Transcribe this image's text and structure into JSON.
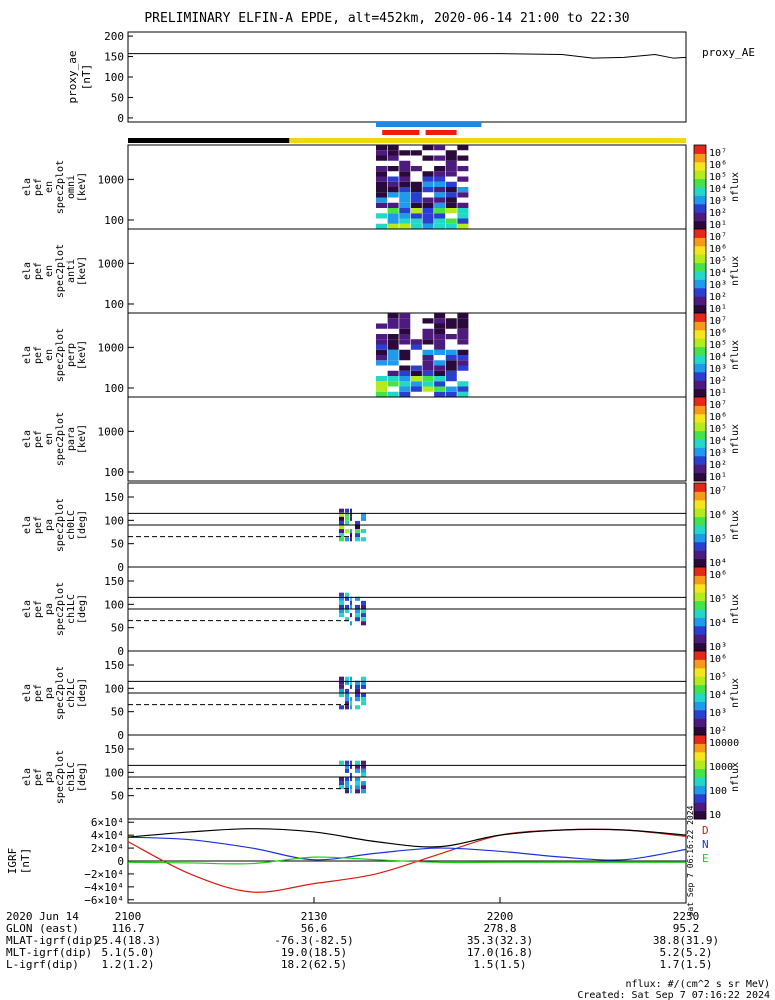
{
  "title": "PRELIMINARY ELFIN-A EPDE, alt=452km, 2020-06-14 21:00 to 22:30",
  "colors": {
    "bar_yellow": "#f2d60f",
    "bar_black": "#000000",
    "bar_blue": "#1e88e5",
    "bar_red": "#ee1c0e",
    "grf_D": "#e01a0c",
    "grf_N": "#1c32d8",
    "grf_E": "#1fcc14",
    "grf_total": "#000000",
    "colormap": [
      "#2a0a3a",
      "#4d1a7e",
      "#2b3fcf",
      "#1e9bea",
      "#22d8c8",
      "#45e34a",
      "#b5ea1c",
      "#f4e51c",
      "#f69a1a",
      "#e4281a"
    ]
  },
  "status_bars": {
    "black_segment": [
      "21:00",
      "21:26"
    ],
    "blue_segment": [
      "21:40",
      "21:57"
    ],
    "red_segments": [
      [
        "21:41",
        "21:47"
      ],
      [
        "21:48",
        "21:53"
      ]
    ]
  },
  "panels": {
    "ae": {
      "label_lines": [
        "proxy_ae",
        "[nT]"
      ],
      "right_label": "proxy_AE"
    },
    "en": [
      {
        "label_lines": [
          "ela",
          "pef",
          "en",
          "spec2plot",
          "omni",
          "[keV]"
        ],
        "yticks": [
          "1000",
          "100"
        ]
      },
      {
        "label_lines": [
          "ela",
          "pef",
          "en",
          "spec2plot",
          "anti",
          "[keV]"
        ],
        "yticks": [
          "1000",
          "100"
        ]
      },
      {
        "label_lines": [
          "ela",
          "pef",
          "en",
          "spec2plot",
          "perp",
          "[keV]"
        ],
        "yticks": [
          "1000",
          "100"
        ]
      },
      {
        "label_lines": [
          "ela",
          "pef",
          "en",
          "spec2plot",
          "para",
          "[keV]"
        ],
        "yticks": [
          "1000",
          "100"
        ]
      }
    ],
    "pa": [
      {
        "label_lines": [
          "ela",
          "pef",
          "pa",
          "spec2plot",
          "ch0LC",
          "[deg]"
        ],
        "yticks": [
          "150",
          "100",
          "50",
          "0"
        ]
      },
      {
        "label_lines": [
          "ela",
          "pef",
          "pa",
          "spec2plot",
          "ch1LC",
          "[deg]"
        ],
        "yticks": [
          "150",
          "100",
          "50",
          "0"
        ]
      },
      {
        "label_lines": [
          "ela",
          "pef",
          "pa",
          "spec2plot",
          "ch2LC",
          "[deg]"
        ],
        "yticks": [
          "150",
          "100",
          "50",
          "0"
        ]
      },
      {
        "label_lines": [
          "ela",
          "pef",
          "pa",
          "spec2plot",
          "ch3LC",
          "[deg]"
        ],
        "yticks": [
          "150",
          "100",
          "50"
        ]
      }
    ],
    "colorbars": [
      {
        "unit": "nflux",
        "ticks": [
          "10⁷",
          "10⁶",
          "10⁵",
          "10⁴",
          "10³",
          "10²",
          "10¹"
        ]
      },
      {
        "unit": "nflux",
        "ticks": [
          "10⁷",
          "10⁶",
          "10⁵",
          "10⁴",
          "10³",
          "10²",
          "10¹"
        ]
      },
      {
        "unit": "nflux",
        "ticks": [
          "10⁷",
          "10⁶",
          "10⁵",
          "10⁴",
          "10³",
          "10²",
          "10¹"
        ]
      },
      {
        "unit": "nflux",
        "ticks": [
          "10⁷",
          "10⁶",
          "10⁵",
          "10⁴",
          "10³",
          "10²",
          "10¹"
        ]
      },
      {
        "unit": "nflux",
        "ticks": [
          "10⁷",
          "10⁶",
          "10⁵",
          "10⁴"
        ]
      },
      {
        "unit": "nflux",
        "ticks": [
          "10⁶",
          "10⁵",
          "10⁴",
          "10³"
        ]
      },
      {
        "unit": "nflux",
        "ticks": [
          "10⁶",
          "10⁵",
          "10⁴",
          "10³",
          "10²"
        ]
      },
      {
        "unit": "nflux",
        "ticks": [
          "10000",
          "1000",
          "100",
          "10"
        ]
      }
    ],
    "grf": {
      "label_lines": [
        "IGRF",
        "[nT]"
      ],
      "yticks": [
        "6×10⁴",
        "4×10⁴",
        "2×10⁴",
        "0",
        "−2×10⁴",
        "−4×10⁴",
        "−6×10⁴"
      ],
      "legend": [
        "D",
        "N",
        "E"
      ],
      "side_text": "Sat Sep 7 06:16:22 2024"
    }
  },
  "chart_data": [
    {
      "type": "line",
      "name": "proxy_AE",
      "ylabel": "proxy_ae [nT]",
      "ylim": [
        -10,
        210
      ],
      "yticks": [
        0,
        50,
        100,
        150,
        200
      ],
      "x_minutes": [
        0,
        40,
        60,
        70,
        75,
        80,
        85,
        88,
        90
      ],
      "y": [
        157,
        157,
        157,
        155,
        146,
        148,
        155,
        146,
        148
      ]
    },
    {
      "type": "heatmap",
      "name": "energy spectrograms",
      "ylabel": "[keV]",
      "y_scale": "log",
      "ytick_values": [
        1000,
        100
      ],
      "active_interval": [
        "21:40",
        "21:55"
      ],
      "colorbar": "nflux"
    },
    {
      "type": "heatmap",
      "name": "pitch-angle spectrograms",
      "ylabel": "[deg]",
      "ylim": [
        0,
        180
      ],
      "yticks": [
        0,
        50,
        100,
        150
      ],
      "reference_lines": {
        "solid": [
          90,
          115
        ],
        "dashed": [
          65
        ]
      },
      "active_interval": [
        "21:40",
        "21:55"
      ]
    },
    {
      "type": "line",
      "name": "IGRF",
      "ylabel": "IGRF [nT]",
      "ylim": [
        -65000,
        65000
      ],
      "x_minutes": [
        0,
        10,
        20,
        30,
        40,
        50,
        60,
        70,
        80,
        90
      ],
      "series": [
        {
          "name": "D",
          "values": [
            30000,
            -20000,
            -48000,
            -35000,
            -20000,
            10000,
            40000,
            48000,
            48000,
            38000
          ]
        },
        {
          "name": "N",
          "values": [
            37000,
            33000,
            20000,
            2000,
            12000,
            20000,
            15000,
            6000,
            2000,
            18000
          ]
        },
        {
          "name": "E",
          "values": [
            -2000,
            -3000,
            -4000,
            6000,
            2000,
            -2000,
            -2000,
            -2000,
            -2000,
            -2000
          ]
        },
        {
          "name": "total",
          "values": [
            37000,
            45000,
            50000,
            45000,
            30000,
            22000,
            40000,
            48000,
            48000,
            40000
          ]
        }
      ]
    }
  ],
  "footer": {
    "rows": [
      {
        "label": "2020 Jun 14",
        "values": [
          "2100",
          "2130",
          "2200",
          "2230"
        ]
      },
      {
        "label": "GLON (east)",
        "values": [
          "116.7",
          "56.6",
          "278.8",
          "95.2"
        ]
      },
      {
        "label": "MLAT-igrf(dip)",
        "values": [
          "25.4(18.3)",
          "-76.3(-82.5)",
          "35.3(32.3)",
          "38.8(31.9)"
        ]
      },
      {
        "label": "MLT-igrf(dip)",
        "values": [
          "5.1(5.0)",
          "19.0(18.5)",
          "17.0(16.8)",
          "5.2(5.2)"
        ]
      },
      {
        "label": "L-igrf(dip)",
        "values": [
          "1.2(1.2)",
          "18.2(62.5)",
          "1.5(1.5)",
          "1.7(1.5)"
        ]
      }
    ],
    "unit_note": "nflux: #/(cm^2 s sr MeV)",
    "created": "Created: Sat Sep  7 07:16:22 2024"
  }
}
